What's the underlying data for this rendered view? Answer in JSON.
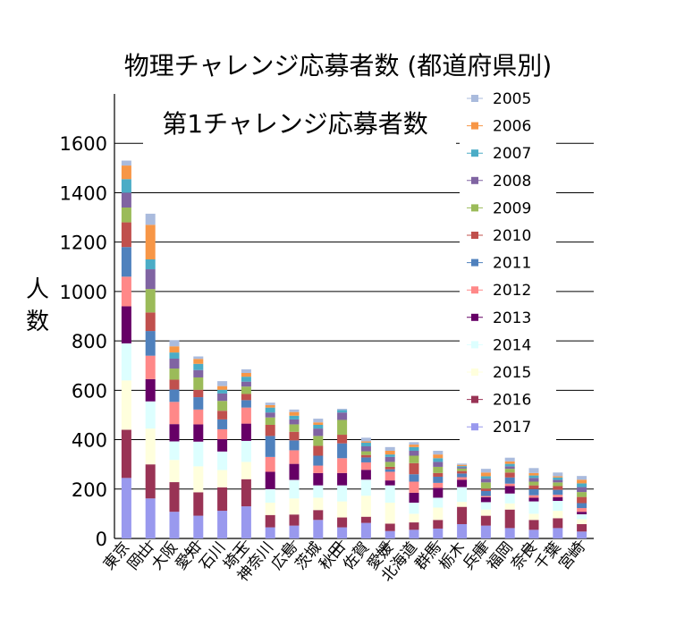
{
  "chart_data": {
    "type": "bar",
    "stacked": true,
    "title": "物理チャレンジ応募者数  (都道府県別)",
    "inner_title": "第1チャレンジ応募者数",
    "ylabel": "人数",
    "xlabel": "",
    "ylim": [
      0,
      1800
    ],
    "yticks": [
      0,
      200,
      400,
      600,
      800,
      1000,
      1200,
      1400,
      1600
    ],
    "grid": true,
    "legend_position": "right",
    "categories": [
      "東京",
      "岡山",
      "大阪",
      "愛知",
      "石川",
      "埼玉",
      "神奈川",
      "広島",
      "茨城",
      "秋田",
      "佐賀",
      "愛媛",
      "北海道",
      "群馬",
      "栃木",
      "兵庫",
      "福岡",
      "奈良",
      "千葉",
      "宮崎"
    ],
    "x_tick_labels_shown": [
      "東京",
      "岡山",
      "大阪",
      "愛知",
      "石川",
      "埼玉",
      "神奈川",
      "広島",
      "茨城",
      "秋田",
      "佐賀",
      "愛媛",
      "北海道",
      "群馬",
      "栃木",
      "兵庫",
      "福岡",
      "奈良",
      "千葉",
      "宮崎"
    ],
    "series": [
      {
        "name": "2017",
        "color": "#9999ee",
        "values": [
          245,
          162,
          108,
          92,
          112,
          130,
          45,
          52,
          75,
          45,
          63,
          30,
          35,
          40,
          58,
          52,
          42,
          35,
          42,
          28
        ]
      },
      {
        "name": "2016",
        "color": "#993355",
        "values": [
          195,
          138,
          120,
          95,
          95,
          110,
          50,
          45,
          40,
          40,
          25,
          30,
          30,
          35,
          70,
          40,
          75,
          40,
          40,
          30
        ]
      },
      {
        "name": "2015",
        "color": "#ffffdd",
        "values": [
          200,
          145,
          90,
          105,
          70,
          70,
          50,
          65,
          50,
          65,
          85,
          85,
          35,
          50,
          20,
          25,
          25,
          25,
          30,
          20
        ]
      },
      {
        "name": "2014",
        "color": "#ddffff",
        "values": [
          150,
          110,
          75,
          100,
          75,
          85,
          55,
          75,
          50,
          65,
          65,
          70,
          45,
          40,
          60,
          30,
          40,
          50,
          40,
          20
        ]
      },
      {
        "name": "2013",
        "color": "#660066",
        "values": [
          150,
          90,
          70,
          70,
          50,
          70,
          70,
          65,
          50,
          50,
          40,
          20,
          40,
          40,
          30,
          20,
          30,
          15,
          15,
          10
        ]
      },
      {
        "name": "2012",
        "color": "#ff8888",
        "values": [
          120,
          95,
          90,
          60,
          40,
          65,
          60,
          55,
          30,
          60,
          30,
          35,
          45,
          20,
          10,
          5,
          10,
          10,
          10,
          15
        ]
      },
      {
        "name": "2011",
        "color": "#4f81bd",
        "values": [
          120,
          100,
          50,
          50,
          40,
          30,
          85,
          40,
          40,
          60,
          20,
          10,
          30,
          25,
          15,
          20,
          25,
          25,
          20,
          20
        ]
      },
      {
        "name": "2010",
        "color": "#c0504d",
        "values": [
          100,
          75,
          40,
          30,
          35,
          25,
          45,
          35,
          40,
          35,
          10,
          10,
          45,
          15,
          10,
          10,
          20,
          15,
          15,
          25
        ]
      },
      {
        "name": "2009",
        "color": "#9bbb59",
        "values": [
          60,
          95,
          45,
          50,
          40,
          30,
          30,
          30,
          40,
          60,
          15,
          20,
          30,
          25,
          10,
          25,
          15,
          15,
          15,
          20
        ]
      },
      {
        "name": "2008",
        "color": "#8064a2",
        "values": [
          60,
          80,
          40,
          30,
          30,
          20,
          20,
          20,
          30,
          30,
          20,
          20,
          20,
          20,
          5,
          15,
          10,
          15,
          10,
          20
        ]
      },
      {
        "name": "2007",
        "color": "#4bacc6",
        "values": [
          55,
          40,
          25,
          25,
          15,
          20,
          20,
          15,
          15,
          10,
          15,
          10,
          15,
          15,
          5,
          10,
          10,
          10,
          10,
          15
        ]
      },
      {
        "name": "2006",
        "color": "#f79646",
        "values": [
          55,
          140,
          25,
          20,
          15,
          15,
          10,
          15,
          10,
          0,
          5,
          15,
          10,
          15,
          5,
          15,
          10,
          10,
          5,
          15
        ]
      },
      {
        "name": "2005",
        "color": "#aabbdd",
        "values": [
          20,
          45,
          25,
          10,
          20,
          15,
          10,
          10,
          15,
          5,
          15,
          15,
          10,
          15,
          5,
          15,
          15,
          20,
          15,
          15
        ]
      }
    ]
  }
}
